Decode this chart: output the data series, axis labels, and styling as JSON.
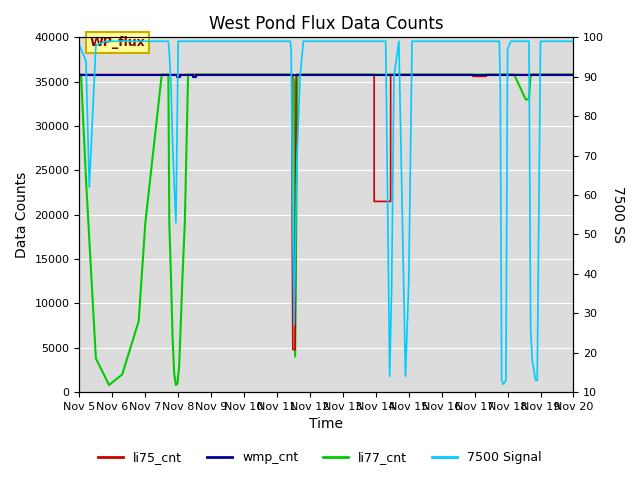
{
  "title": "West Pond Flux Data Counts",
  "xlabel": "Time",
  "ylabel_left": "Data Counts",
  "ylabel_right": "7500 SS",
  "xlim_start": 5,
  "xlim_end": 20,
  "ylim_left": [
    0,
    40000
  ],
  "ylim_right": [
    10,
    100
  ],
  "xtick_labels": [
    "Nov 5",
    "Nov 6",
    "Nov 7",
    "Nov 8",
    "Nov 9",
    "Nov 10",
    "Nov 11",
    "Nov 12",
    "Nov 13",
    "Nov 14",
    "Nov 15",
    "Nov 16",
    "Nov 17",
    "Nov 18",
    "Nov 19",
    "Nov 20"
  ],
  "yticks_left": [
    0,
    5000,
    10000,
    15000,
    20000,
    25000,
    30000,
    35000,
    40000
  ],
  "yticks_right": [
    10,
    20,
    30,
    40,
    50,
    60,
    70,
    80,
    90,
    100
  ],
  "background_color": "#dcdcdc",
  "plot_bg_light": "#ebebeb",
  "legend_label_box": "WP_flux",
  "legend_box_facecolor": "#ffff99",
  "legend_box_edgecolor": "#ccaa00",
  "colors": {
    "li75_cnt": "#cc0000",
    "wmp_cnt": "#000099",
    "li77_cnt": "#00cc00",
    "s7500": "#00ccff"
  },
  "li75_x": [
    5.0,
    10.85,
    10.85,
    11.05,
    11.05,
    11.45,
    11.45,
    11.48,
    11.55,
    11.58,
    12.25,
    12.35,
    12.35,
    13.95,
    13.95,
    14.45,
    14.45,
    14.52,
    16.95,
    16.95,
    17.35,
    17.35,
    20.0
  ],
  "li75_y": [
    35800,
    35800,
    35800,
    35800,
    35800,
    35800,
    27000,
    4800,
    4800,
    35800,
    35800,
    35800,
    35800,
    35800,
    21500,
    21500,
    35800,
    35800,
    35800,
    35600,
    35600,
    35800,
    35800
  ],
  "wmp_x": [
    5.0,
    7.95,
    7.95,
    8.05,
    8.05,
    8.45,
    8.45,
    8.55,
    8.55,
    20.0
  ],
  "wmp_y": [
    35800,
    35800,
    35550,
    35550,
    35800,
    35800,
    35550,
    35550,
    35800,
    35800
  ],
  "li77_x": [
    5.0,
    5.05,
    5.2,
    5.5,
    5.9,
    6.3,
    6.8,
    7.0,
    7.5,
    7.7,
    7.73,
    7.78,
    7.83,
    7.88,
    7.93,
    7.98,
    8.03,
    8.08,
    8.13,
    8.2,
    8.3,
    8.5,
    8.7,
    9.0,
    9.5,
    10.0,
    10.5,
    10.85,
    10.87,
    10.9,
    11.0,
    11.45,
    11.47,
    11.52,
    11.55,
    11.62,
    11.65,
    11.75,
    11.85,
    12.0,
    12.3,
    12.5,
    13.0,
    13.5,
    13.95,
    14.0,
    14.45,
    14.5,
    15.0,
    15.5,
    16.0,
    16.5,
    16.95,
    17.0,
    17.35,
    17.4,
    17.7,
    17.85,
    18.0,
    18.2,
    18.55,
    18.65,
    18.7,
    18.8,
    19.0,
    19.5,
    20.0
  ],
  "li77_y": [
    35800,
    35800,
    24000,
    3800,
    800,
    2000,
    8000,
    19000,
    35800,
    35800,
    19000,
    13000,
    6000,
    2000,
    800,
    1000,
    3000,
    8000,
    13000,
    19000,
    35800,
    35800,
    35800,
    35800,
    35800,
    35800,
    35800,
    35800,
    35800,
    35800,
    35800,
    35800,
    35800,
    35000,
    4000,
    35800,
    35800,
    35800,
    35800,
    35800,
    35800,
    35800,
    35800,
    35800,
    35800,
    35800,
    35800,
    35800,
    35800,
    35800,
    35800,
    35800,
    35800,
    35800,
    35800,
    35800,
    35800,
    35800,
    35800,
    35800,
    33000,
    33000,
    35800,
    35800,
    35800,
    35800,
    35800
  ],
  "s7500_x": [
    5.0,
    5.05,
    5.1,
    5.2,
    5.3,
    5.5,
    5.8,
    6.0,
    6.5,
    7.0,
    7.5,
    7.7,
    7.73,
    7.78,
    7.83,
    7.88,
    7.93,
    8.0,
    8.5,
    9.0,
    9.5,
    10.0,
    10.5,
    10.85,
    10.9,
    11.0,
    11.1,
    11.2,
    11.3,
    11.35,
    11.4,
    11.43,
    11.47,
    11.52,
    11.6,
    11.7,
    11.8,
    11.9,
    12.0,
    12.1,
    12.3,
    12.5,
    13.0,
    13.5,
    13.95,
    14.0,
    14.1,
    14.2,
    14.3,
    14.42,
    14.48,
    14.55,
    14.7,
    14.9,
    15.0,
    15.1,
    15.5,
    16.0,
    16.5,
    16.95,
    17.0,
    17.1,
    17.3,
    17.35,
    17.4,
    17.5,
    17.6,
    17.7,
    17.75,
    17.78,
    17.82,
    17.87,
    17.95,
    18.0,
    18.1,
    18.2,
    18.35,
    18.5,
    18.6,
    18.65,
    18.7,
    18.75,
    18.85,
    18.9,
    19.0,
    19.5,
    20.0
  ],
  "s7500_y": [
    98,
    97,
    96,
    94,
    62,
    98,
    99,
    99,
    99,
    99,
    99,
    99,
    96,
    88,
    73,
    62,
    53,
    99,
    99,
    99,
    99,
    99,
    99,
    99,
    99,
    99,
    99,
    99,
    99,
    99,
    99,
    97,
    56,
    27,
    68,
    90,
    99,
    99,
    99,
    99,
    99,
    99,
    99,
    99,
    99,
    99,
    99,
    99,
    99,
    14,
    36,
    90,
    99,
    14,
    38,
    99,
    99,
    99,
    99,
    99,
    99,
    99,
    99,
    99,
    99,
    99,
    99,
    99,
    99,
    87,
    13,
    12,
    13,
    97,
    99,
    99,
    99,
    99,
    99,
    99,
    26,
    18,
    13,
    13,
    99,
    99,
    99
  ]
}
